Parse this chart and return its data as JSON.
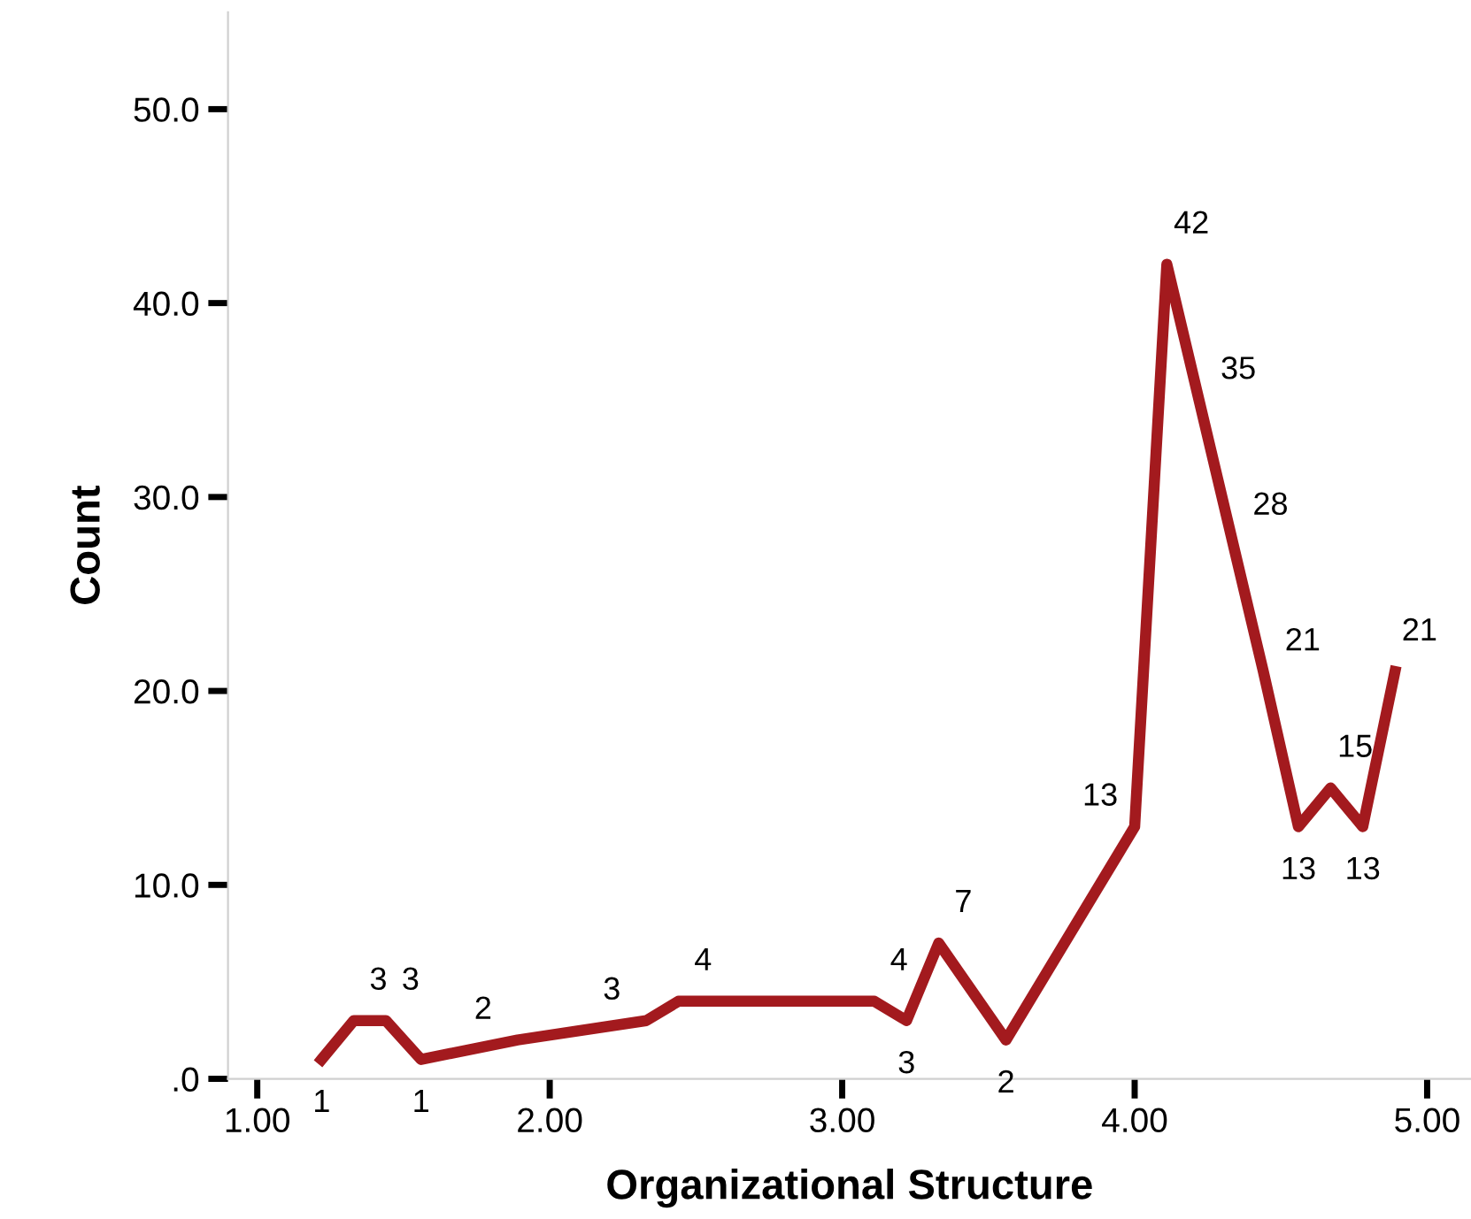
{
  "chart_data": {
    "type": "line",
    "xlabel": "Organizational Structure",
    "ylabel": "Count",
    "x": [
      1.22,
      1.33,
      1.44,
      1.56,
      1.89,
      2.33,
      2.44,
      3.11,
      3.22,
      3.33,
      3.56,
      4.0,
      4.11,
      4.22,
      4.33,
      4.44,
      4.56,
      4.67,
      4.78,
      4.89
    ],
    "series": [
      {
        "color": "#a31a1e",
        "values": [
          1,
          3,
          3,
          1,
          2,
          3,
          4,
          4,
          3,
          7,
          2,
          13,
          42,
          35,
          28,
          21,
          13,
          15,
          13,
          21
        ]
      }
    ],
    "data_labels": true,
    "marker": "none",
    "line_style": "solid",
    "grid": false,
    "legend": false,
    "xlim": [
      0.9,
      5.15
    ],
    "xticks": [
      {
        "value": 1,
        "label": "1.00"
      },
      {
        "value": 2,
        "label": "2.00"
      },
      {
        "value": 3,
        "label": "3.00"
      },
      {
        "value": 4,
        "label": "4.00"
      },
      {
        "value": 5,
        "label": "5.00"
      }
    ],
    "ylim": [
      0,
      55
    ],
    "yticks": [
      {
        "value": 0,
        "label": ".0"
      },
      {
        "value": 10,
        "label": "10.0"
      },
      {
        "value": 20,
        "label": "20.0"
      },
      {
        "value": 30,
        "label": "30.0"
      },
      {
        "value": 40,
        "label": "40.0"
      },
      {
        "value": 50,
        "label": "50.0"
      }
    ]
  }
}
